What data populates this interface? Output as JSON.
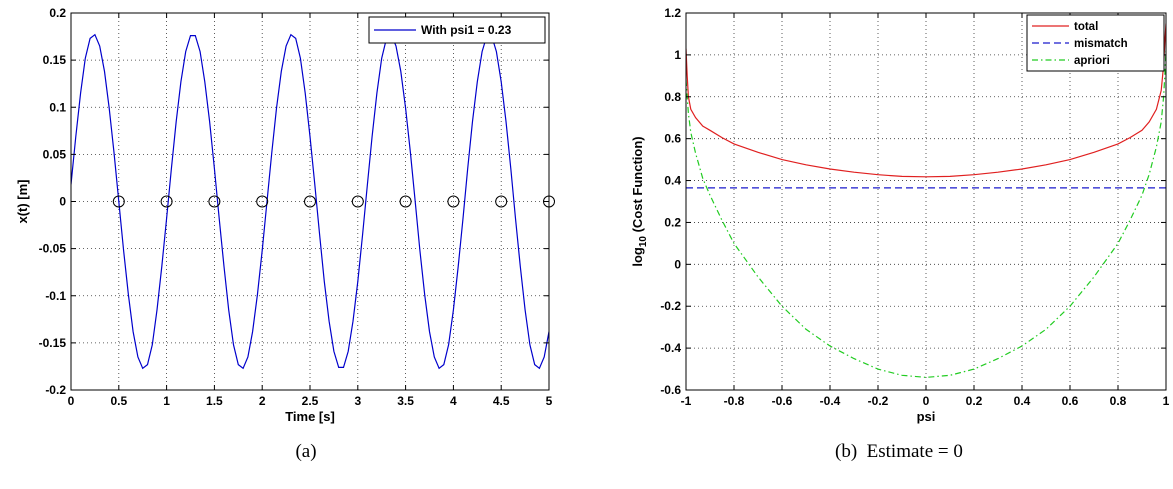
{
  "captions": {
    "a": "(a)",
    "b": "(b)  Estimate = 0"
  },
  "chart_data": [
    {
      "type": "line",
      "xlabel": "Time [s]",
      "ylabel": "x(t) [m]",
      "xlim": [
        0,
        5
      ],
      "ylim": [
        -0.2,
        0.2
      ],
      "xticks": [
        0,
        0.5,
        1,
        1.5,
        2,
        2.5,
        3,
        3.5,
        4,
        4.5,
        5
      ],
      "xticklabels": [
        "0",
        "0.5",
        "1",
        "1.5",
        "2",
        "2.5",
        "3",
        "3.5",
        "4",
        "4.5",
        "5"
      ],
      "yticks": [
        -0.2,
        -0.15,
        -0.1,
        -0.05,
        0,
        0.05,
        0.1,
        0.15,
        0.2
      ],
      "yticklabels": [
        "-0.2",
        "-0.15",
        "-0.1",
        "-0.05",
        "0",
        "0.05",
        "0.1",
        "0.15",
        "0.2"
      ],
      "grid": true,
      "legend": "top-right",
      "series": [
        {
          "name": "With psi1 = 0.23",
          "kind": "line",
          "color": "#0000cc",
          "style": "solid",
          "x": [
            0,
            0.05,
            0.1,
            0.15,
            0.2,
            0.25,
            0.3,
            0.35,
            0.4,
            0.45,
            0.5,
            0.55,
            0.6,
            0.65,
            0.7,
            0.75,
            0.8,
            0.85,
            0.9,
            0.95,
            1,
            1.05,
            1.1,
            1.15,
            1.2,
            1.25,
            1.3,
            1.35,
            1.4,
            1.45,
            1.5,
            1.55,
            1.6,
            1.65,
            1.7,
            1.75,
            1.8,
            1.85,
            1.9,
            1.95,
            2,
            2.05,
            2.1,
            2.15,
            2.2,
            2.25,
            2.3,
            2.35,
            2.4,
            2.45,
            2.5,
            2.55,
            2.6,
            2.65,
            2.7,
            2.75,
            2.8,
            2.85,
            2.9,
            2.95,
            3,
            3.05,
            3.1,
            3.15,
            3.2,
            3.25,
            3.3,
            3.35,
            3.4,
            3.45,
            3.5,
            3.55,
            3.6,
            3.65,
            3.7,
            3.75,
            3.8,
            3.85,
            3.9,
            3.95,
            4,
            4.05,
            4.1,
            4.15,
            4.2,
            4.25,
            4.3,
            4.35,
            4.4,
            4.45,
            4.5,
            4.55,
            4.6,
            4.65,
            4.7,
            4.75,
            4.8,
            4.85,
            4.9,
            4.95,
            5
          ],
          "y": [
            0.018,
            0.069,
            0.115,
            0.152,
            0.173,
            0.177,
            0.165,
            0.138,
            0.099,
            0.052,
            0.0,
            -0.052,
            -0.099,
            -0.138,
            -0.165,
            -0.177,
            -0.173,
            -0.152,
            -0.115,
            -0.069,
            -0.018,
            0.035,
            0.085,
            0.127,
            0.159,
            0.176,
            0.176,
            0.159,
            0.127,
            0.085,
            0.035,
            -0.018,
            -0.069,
            -0.115,
            -0.152,
            -0.173,
            -0.177,
            -0.165,
            -0.138,
            -0.099,
            -0.052,
            0.0,
            0.052,
            0.099,
            0.138,
            0.165,
            0.177,
            0.173,
            0.152,
            0.115,
            0.069,
            0.018,
            -0.035,
            -0.085,
            -0.127,
            -0.159,
            -0.176,
            -0.176,
            -0.159,
            -0.127,
            -0.085,
            -0.035,
            0.018,
            0.069,
            0.115,
            0.152,
            0.173,
            0.177,
            0.165,
            0.138,
            0.099,
            0.052,
            0.0,
            -0.052,
            -0.099,
            -0.138,
            -0.165,
            -0.177,
            -0.173,
            -0.152,
            -0.115,
            -0.069,
            -0.018,
            0.035,
            0.085,
            0.127,
            0.159,
            0.176,
            0.176,
            0.159,
            0.127,
            0.085,
            0.035,
            -0.018,
            -0.069,
            -0.115,
            -0.152,
            -0.173,
            -0.177,
            -0.165,
            -0.138
          ]
        },
        {
          "name": "",
          "kind": "marker",
          "marker": "circle",
          "color": "#000000",
          "x": [
            0.5,
            1.0,
            1.5,
            2.0,
            2.5,
            3.0,
            3.5,
            4.0,
            4.5,
            5.0
          ],
          "y": [
            0,
            0,
            0,
            0,
            0,
            0,
            0,
            0,
            0,
            0
          ]
        }
      ]
    },
    {
      "type": "line",
      "xlabel": "psi",
      "ylabel": "log10 (Cost Function)",
      "ylabel_parts": {
        "base": "log",
        "sub": "10",
        "rest": " (Cost Function)"
      },
      "xlim": [
        -1,
        1
      ],
      "ylim": [
        -0.6,
        1.2
      ],
      "xticks": [
        -1,
        -0.8,
        -0.6,
        -0.4,
        -0.2,
        0,
        0.2,
        0.4,
        0.6,
        0.8,
        1
      ],
      "xticklabels": [
        "-1",
        "-0.8",
        "-0.6",
        "-0.4",
        "-0.2",
        "0",
        "0.2",
        "0.4",
        "0.6",
        "0.8",
        "1"
      ],
      "yticks": [
        -0.6,
        -0.4,
        -0.2,
        0,
        0.2,
        0.4,
        0.6,
        0.8,
        1,
        1.2
      ],
      "yticklabels": [
        "-0.6",
        "-0.4",
        "-0.2",
        "0",
        "0.2",
        "0.4",
        "0.6",
        "0.8",
        "1",
        "1.2"
      ],
      "grid": true,
      "legend": "top-right",
      "series": [
        {
          "name": "total",
          "kind": "line",
          "color": "#e02020",
          "style": "solid",
          "x": [
            -1,
            -0.995,
            -0.99,
            -0.98,
            -0.96,
            -0.93,
            -0.9,
            -0.85,
            -0.8,
            -0.7,
            -0.6,
            -0.5,
            -0.4,
            -0.3,
            -0.2,
            -0.1,
            0,
            0.1,
            0.2,
            0.3,
            0.4,
            0.5,
            0.6,
            0.7,
            0.8,
            0.85,
            0.9,
            0.93,
            0.96,
            0.98,
            0.99,
            0.995,
            1
          ],
          "y": [
            1.03,
            0.9,
            0.8,
            0.74,
            0.7,
            0.66,
            0.64,
            0.605,
            0.575,
            0.535,
            0.5,
            0.475,
            0.455,
            0.44,
            0.428,
            0.42,
            0.418,
            0.42,
            0.428,
            0.44,
            0.455,
            0.475,
            0.5,
            0.535,
            0.575,
            0.605,
            0.64,
            0.68,
            0.74,
            0.83,
            0.95,
            1.06,
            1.15
          ]
        },
        {
          "name": "mismatch",
          "kind": "line",
          "color": "#1a1acc",
          "style": "dashed",
          "x": [
            -1,
            1
          ],
          "y": [
            0.365,
            0.365
          ]
        },
        {
          "name": "apriori",
          "kind": "line",
          "color": "#22cc22",
          "style": "dashdot",
          "x": [
            -1,
            -0.995,
            -0.99,
            -0.98,
            -0.96,
            -0.93,
            -0.9,
            -0.85,
            -0.8,
            -0.7,
            -0.6,
            -0.5,
            -0.4,
            -0.3,
            -0.2,
            -0.1,
            0,
            0.1,
            0.2,
            0.3,
            0.4,
            0.5,
            0.6,
            0.7,
            0.8,
            0.85,
            0.9,
            0.93,
            0.96,
            0.98,
            0.99,
            0.995,
            1
          ],
          "y": [
            0.88,
            0.8,
            0.72,
            0.63,
            0.53,
            0.41,
            0.33,
            0.21,
            0.1,
            -0.06,
            -0.2,
            -0.31,
            -0.39,
            -0.45,
            -0.5,
            -0.53,
            -0.54,
            -0.53,
            -0.5,
            -0.45,
            -0.39,
            -0.31,
            -0.2,
            -0.06,
            0.1,
            0.21,
            0.33,
            0.43,
            0.56,
            0.68,
            0.8,
            0.9,
            1.02
          ]
        }
      ]
    }
  ]
}
